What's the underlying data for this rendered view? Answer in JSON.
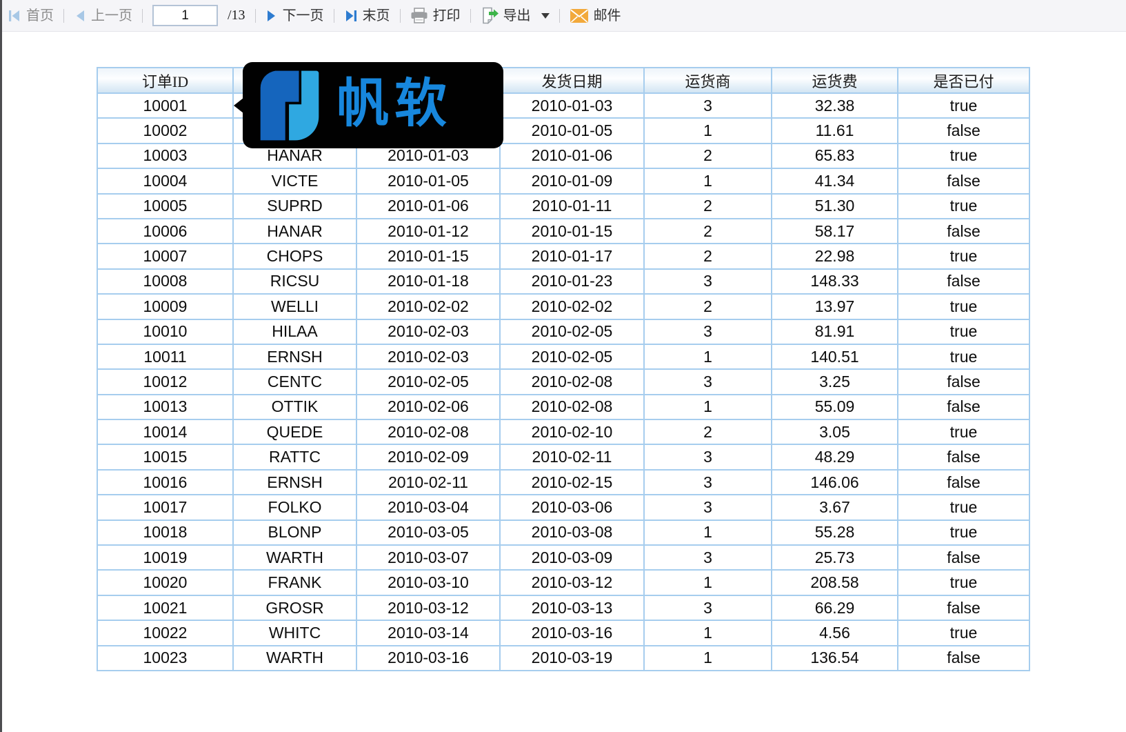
{
  "toolbar": {
    "first_label": "首页",
    "prev_label": "上一页",
    "page_value": "1",
    "page_total": "/13",
    "next_label": "下一页",
    "last_label": "末页",
    "print_label": "打印",
    "export_label": "导出",
    "mail_label": "邮件"
  },
  "logo": {
    "text": "帆软"
  },
  "table": {
    "headers": [
      "订单ID",
      "",
      "",
      "发货日期",
      "运货商",
      "运货费",
      "是否已付"
    ],
    "rows": [
      [
        "10001",
        "",
        "",
        "2010-01-03",
        "3",
        "32.38",
        "true"
      ],
      [
        "10002",
        "",
        "",
        "2010-01-05",
        "1",
        "11.61",
        "false"
      ],
      [
        "10003",
        "HANAR",
        "2010-01-03",
        "2010-01-06",
        "2",
        "65.83",
        "true"
      ],
      [
        "10004",
        "VICTE",
        "2010-01-05",
        "2010-01-09",
        "1",
        "41.34",
        "false"
      ],
      [
        "10005",
        "SUPRD",
        "2010-01-06",
        "2010-01-11",
        "2",
        "51.30",
        "true"
      ],
      [
        "10006",
        "HANAR",
        "2010-01-12",
        "2010-01-15",
        "2",
        "58.17",
        "false"
      ],
      [
        "10007",
        "CHOPS",
        "2010-01-15",
        "2010-01-17",
        "2",
        "22.98",
        "true"
      ],
      [
        "10008",
        "RICSU",
        "2010-01-18",
        "2010-01-23",
        "3",
        "148.33",
        "false"
      ],
      [
        "10009",
        "WELLI",
        "2010-02-02",
        "2010-02-02",
        "2",
        "13.97",
        "true"
      ],
      [
        "10010",
        "HILAA",
        "2010-02-03",
        "2010-02-05",
        "3",
        "81.91",
        "true"
      ],
      [
        "10011",
        "ERNSH",
        "2010-02-03",
        "2010-02-05",
        "1",
        "140.51",
        "true"
      ],
      [
        "10012",
        "CENTC",
        "2010-02-05",
        "2010-02-08",
        "3",
        "3.25",
        "false"
      ],
      [
        "10013",
        "OTTIK",
        "2010-02-06",
        "2010-02-08",
        "1",
        "55.09",
        "false"
      ],
      [
        "10014",
        "QUEDE",
        "2010-02-08",
        "2010-02-10",
        "2",
        "3.05",
        "true"
      ],
      [
        "10015",
        "RATTC",
        "2010-02-09",
        "2010-02-11",
        "3",
        "48.29",
        "false"
      ],
      [
        "10016",
        "ERNSH",
        "2010-02-11",
        "2010-02-15",
        "3",
        "146.06",
        "false"
      ],
      [
        "10017",
        "FOLKO",
        "2010-03-04",
        "2010-03-06",
        "3",
        "3.67",
        "true"
      ],
      [
        "10018",
        "BLONP",
        "2010-03-05",
        "2010-03-08",
        "1",
        "55.28",
        "true"
      ],
      [
        "10019",
        "WARTH",
        "2010-03-07",
        "2010-03-09",
        "3",
        "25.73",
        "false"
      ],
      [
        "10020",
        "FRANK",
        "2010-03-10",
        "2010-03-12",
        "1",
        "208.58",
        "true"
      ],
      [
        "10021",
        "GROSR",
        "2010-03-12",
        "2010-03-13",
        "3",
        "66.29",
        "false"
      ],
      [
        "10022",
        "WHITC",
        "2010-03-14",
        "2010-03-16",
        "1",
        "4.56",
        "true"
      ],
      [
        "10023",
        "WARTH",
        "2010-03-16",
        "2010-03-19",
        "1",
        "136.54",
        "false"
      ]
    ]
  },
  "colors": {
    "accent_blue_enabled": "#2e7cd0",
    "accent_blue_disabled": "#a8c8e6",
    "table_border": "#a6cdee",
    "header_gradient_bottom": "#d2e5f3",
    "toolbar_bg": "#f5f5f8",
    "logo_dark_blue": "#1565bd",
    "logo_light_blue": "#2fa8e1",
    "logo_text_blue": "#1787dd",
    "mail_orange": "#f2a93b",
    "print_gray": "#9c9ea1",
    "export_green": "#3eb44a"
  }
}
